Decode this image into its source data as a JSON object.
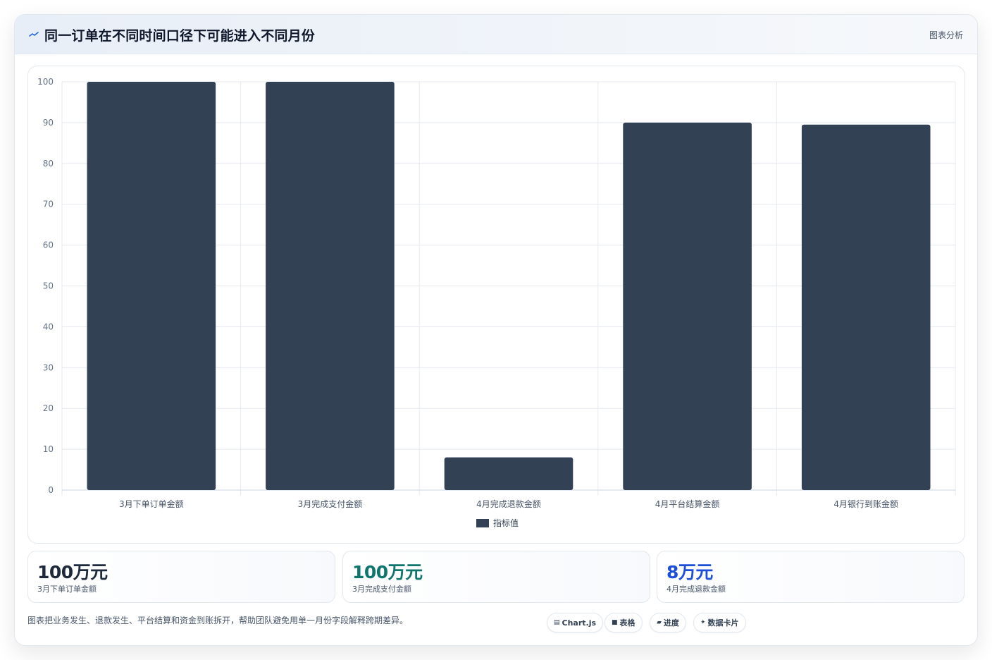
{
  "header": {
    "title": "同一订单在不同时间口径下可能进入不同月份",
    "tag": "图表分析"
  },
  "chart_data": {
    "type": "bar",
    "categories": [
      "3月下单订单金额",
      "3月完成支付金额",
      "4月完成退款金额",
      "4月平台结算金额",
      "4月银行到账金额"
    ],
    "series": [
      {
        "name": "指标值",
        "values": [
          100,
          100,
          8,
          90,
          89.5
        ]
      }
    ],
    "ylim": [
      0,
      100
    ],
    "yticks": [
      0,
      10,
      20,
      30,
      40,
      50,
      60,
      70,
      80,
      90,
      100
    ],
    "grid": true,
    "legend": "bottom",
    "bar_color": "#334155"
  },
  "stats": [
    {
      "value": "100万元",
      "label": "3月下单订单金额",
      "color": "#1e293b"
    },
    {
      "value": "100万元",
      "label": "3月完成支付金额",
      "color": "#0f766e"
    },
    {
      "value": "8万元",
      "label": "4月完成退款金额",
      "color": "#1d4ed8"
    }
  ],
  "footnote": "图表把业务发生、退款发生、平台结算和资金到账拆开，帮助团队避免用单一月份字段解释跨期差异。",
  "chips": [
    {
      "icon": "chart-icon",
      "label": "Chart.js"
    },
    {
      "icon": "table-icon",
      "label": "表格"
    },
    {
      "icon": "progress-icon",
      "label": "进度"
    },
    {
      "icon": "card-icon",
      "label": "数据卡片"
    }
  ]
}
